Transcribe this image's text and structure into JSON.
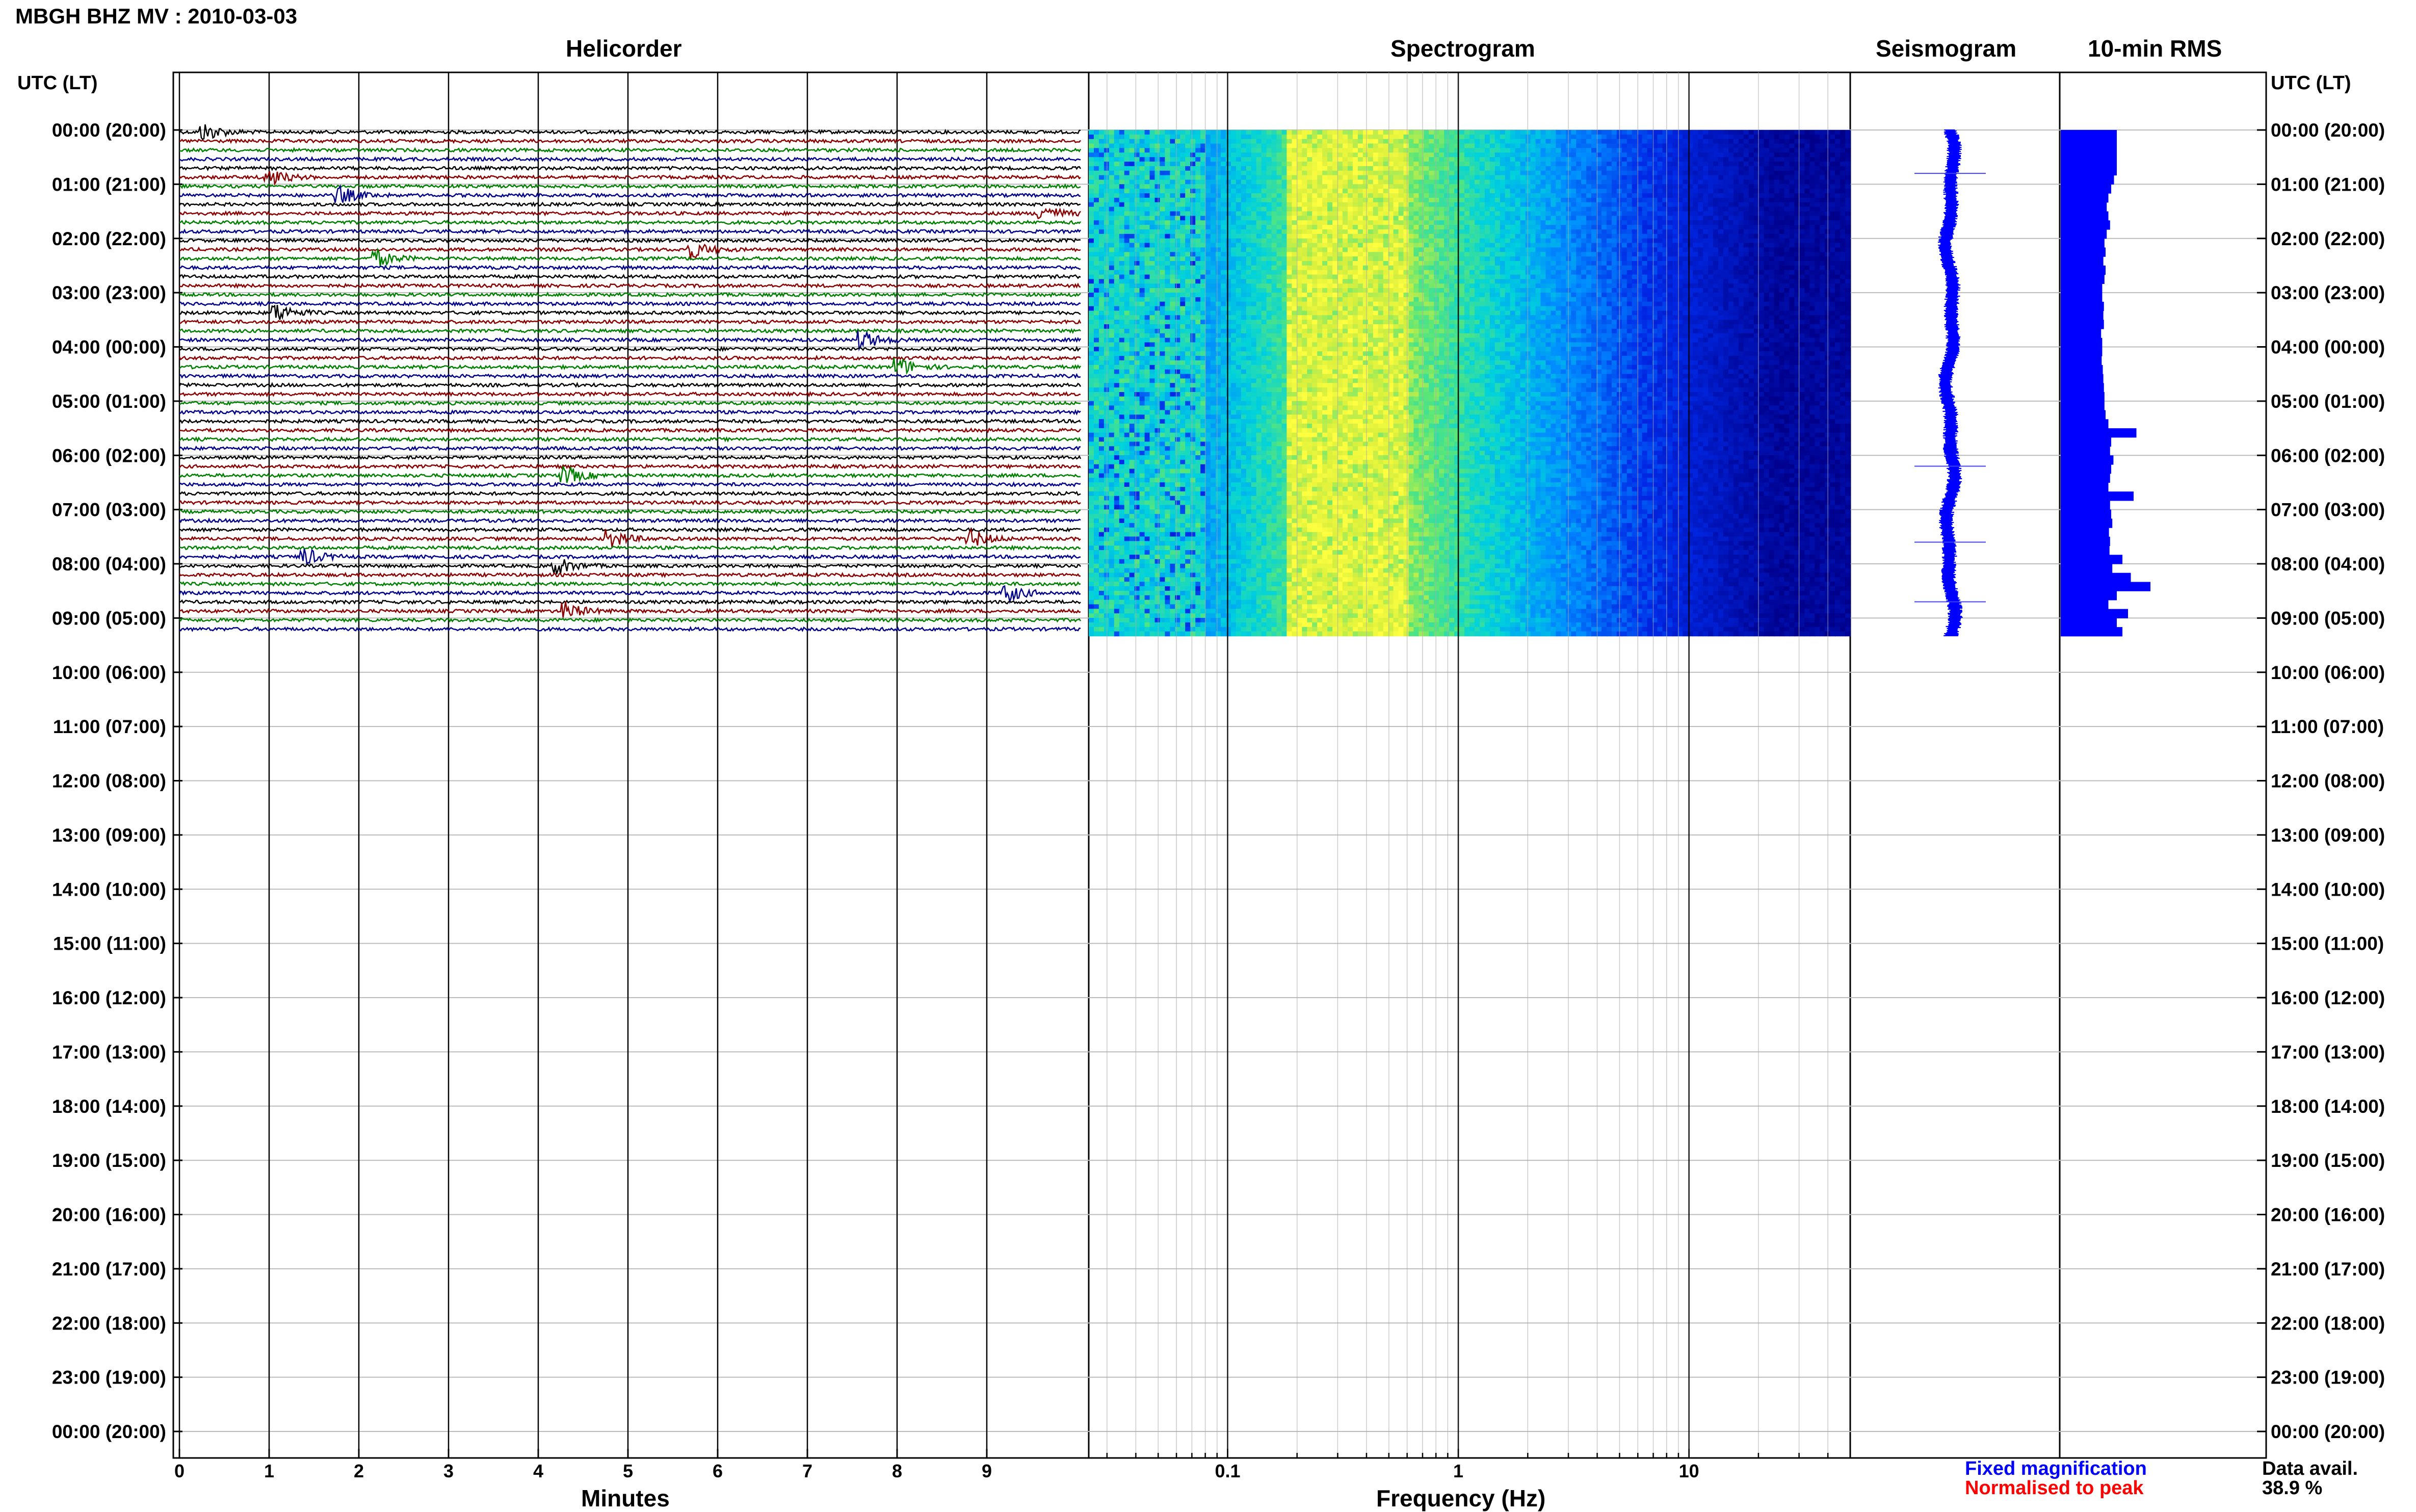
{
  "station_title": "MBGH BHZ MV : 2010-03-03",
  "left_axis_label": "UTC (LT)",
  "right_axis_label": "UTC (LT)",
  "panels": {
    "helicorder": "Helicorder",
    "spectrogram": "Spectrogram",
    "seismogram": "Seismogram",
    "rms": "10-min RMS"
  },
  "legend": {
    "fixed": "Fixed magnification",
    "normalised": "Normalised to peak",
    "fixed_color": "#0000ff",
    "normalised_color": "#ff0000"
  },
  "data_avail": {
    "label": "Data avail.",
    "value": "38.9 %"
  },
  "colors": {
    "trace_cycle": [
      "#000000",
      "#8b0000",
      "#008000",
      "#00008b"
    ],
    "spec_low": "#00008b",
    "spec_high": "#ffff40"
  },
  "chart_data": [
    {
      "type": "line",
      "title": "Helicorder",
      "xlabel": "Minutes",
      "xlim": [
        0,
        10
      ],
      "xticks": [
        "0",
        "1",
        "2",
        "3",
        "4",
        "5",
        "6",
        "7",
        "8",
        "9"
      ],
      "ylim_hours_utc": [
        0,
        24
      ],
      "time_labels": [
        "00:00 (20:00)",
        "01:00 (21:00)",
        "02:00 (22:00)",
        "03:00 (23:00)",
        "04:00 (00:00)",
        "05:00 (01:00)",
        "06:00 (02:00)",
        "07:00 (03:00)",
        "08:00 (04:00)",
        "09:00 (05:00)",
        "10:00 (06:00)",
        "11:00 (07:00)",
        "12:00 (08:00)",
        "13:00 (09:00)",
        "14:00 (10:00)",
        "15:00 (11:00)",
        "16:00 (12:00)",
        "17:00 (13:00)",
        "18:00 (14:00)",
        "19:00 (15:00)",
        "20:00 (16:00)",
        "21:00 (17:00)",
        "22:00 (18:00)",
        "23:00 (19:00)",
        "00:00 (20:00)"
      ],
      "trace_count": 56,
      "trace_interval_min": 10,
      "data_end_utc_hours": 9.33,
      "events": [
        {
          "utc_hour": 0.05,
          "minute": 0.3
        },
        {
          "utc_hour": 0.75,
          "minute": 1.0
        },
        {
          "utc_hour": 1.15,
          "minute": 1.8
        },
        {
          "utc_hour": 1.5,
          "minute": 9.6
        },
        {
          "utc_hour": 2.25,
          "minute": 2.2
        },
        {
          "utc_hour": 2.2,
          "minute": 5.7
        },
        {
          "utc_hour": 3.3,
          "minute": 1.1
        },
        {
          "utc_hour": 3.8,
          "minute": 7.6
        },
        {
          "utc_hour": 4.3,
          "minute": 8.0
        },
        {
          "utc_hour": 6.3,
          "minute": 4.3
        },
        {
          "utc_hour": 7.5,
          "minute": 4.8
        },
        {
          "utc_hour": 7.5,
          "minute": 8.8
        },
        {
          "utc_hour": 7.8,
          "minute": 1.4
        },
        {
          "utc_hour": 7.98,
          "minute": 4.2
        },
        {
          "utc_hour": 8.5,
          "minute": 9.2
        },
        {
          "utc_hour": 8.85,
          "minute": 4.3
        }
      ]
    },
    {
      "type": "heatmap",
      "title": "Spectrogram",
      "xlabel": "Frequency (Hz)",
      "xscale": "log",
      "xlim": [
        0.025,
        50
      ],
      "xticks": [
        "0.1",
        "1",
        "10"
      ],
      "ylim_hours_utc": [
        0,
        24
      ],
      "data_end_utc_hours": 9.33,
      "peak_band_hz": [
        0.2,
        0.5
      ],
      "high_freq_rolloff_hz": 5
    },
    {
      "type": "line",
      "title": "Seismogram",
      "ylim_hours_utc": [
        0,
        24
      ],
      "data_end_utc_hours": 9.33,
      "spikes_utc_hours": [
        0.8,
        6.2,
        7.6,
        8.7
      ]
    },
    {
      "type": "bar",
      "title": "10-min RMS",
      "ylim_hours_utc": [
        0,
        24
      ],
      "interval_min": 10,
      "values": [
        1.0,
        1.0,
        1.0,
        1.0,
        1.0,
        0.95,
        0.9,
        0.85,
        0.82,
        0.85,
        0.88,
        0.82,
        0.78,
        0.8,
        0.76,
        0.8,
        0.78,
        0.74,
        0.74,
        0.77,
        0.76,
        0.77,
        0.72,
        0.74,
        0.74,
        0.73,
        0.75,
        0.76,
        0.77,
        0.78,
        0.78,
        0.8,
        0.85,
        1.35,
        0.9,
        0.88,
        0.94,
        0.9,
        0.88,
        0.85,
        1.3,
        0.88,
        0.9,
        0.92,
        0.86,
        0.88,
        0.87,
        1.1,
        0.92,
        1.25,
        1.6,
        1.0,
        0.85,
        1.2,
        1.0,
        1.1
      ]
    }
  ]
}
